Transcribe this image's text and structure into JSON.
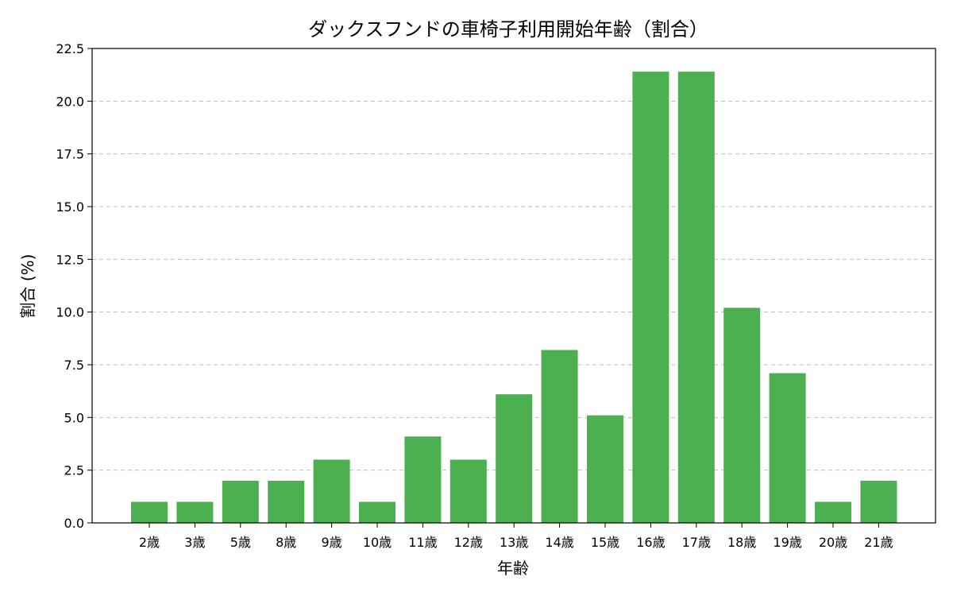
{
  "chart_data": {
    "type": "bar",
    "title": "ダックスフンドの車椅子利用開始年齢（割合）",
    "xlabel": "年齢",
    "ylabel": "割合 (%)",
    "categories": [
      "2歳",
      "3歳",
      "5歳",
      "8歳",
      "9歳",
      "10歳",
      "11歳",
      "12歳",
      "13歳",
      "14歳",
      "15歳",
      "16歳",
      "17歳",
      "18歳",
      "19歳",
      "20歳",
      "21歳"
    ],
    "values": [
      1.0,
      1.0,
      2.0,
      2.0,
      3.0,
      1.0,
      4.1,
      3.0,
      6.1,
      8.2,
      5.1,
      21.4,
      21.4,
      10.2,
      7.1,
      1.0,
      2.0
    ],
    "ylim": [
      0,
      22.5
    ],
    "yticks": [
      "0.0",
      "2.5",
      "5.0",
      "7.5",
      "10.0",
      "12.5",
      "15.0",
      "17.5",
      "20.0",
      "22.5"
    ],
    "grid": "y-dashed",
    "bar_color": "#4caf50"
  }
}
